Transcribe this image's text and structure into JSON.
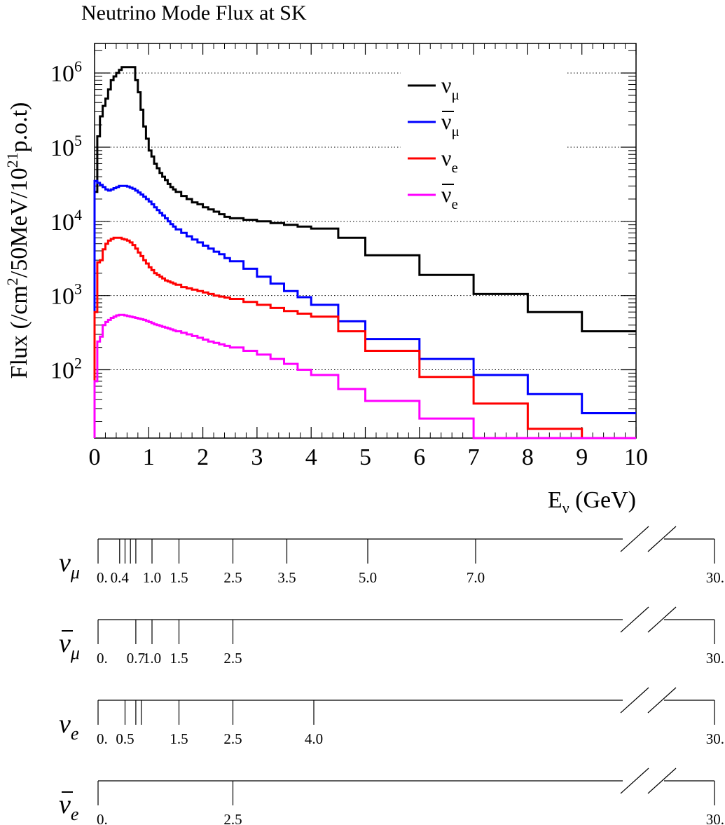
{
  "chart_data": [
    {
      "type": "line",
      "title": "Neutrino Mode Flux at SK",
      "xlabel": "Eν (GeV)",
      "ylabel": "Flux (/cm²/50MeV/10²¹p.o.t)",
      "log_y": true,
      "xlim": [
        0,
        10
      ],
      "ylim": [
        12,
        2500000
      ],
      "grid": "horizontal dotted",
      "legend_position": "top-right",
      "x_ticks": [
        "0",
        "1",
        "2",
        "3",
        "4",
        "5",
        "6",
        "7",
        "8",
        "9",
        "10"
      ],
      "y_ticks": [
        {
          "base": "10",
          "exp": "2",
          "value": 100
        },
        {
          "base": "10",
          "exp": "3",
          "value": 1000
        },
        {
          "base": "10",
          "exp": "4",
          "value": 10000
        },
        {
          "base": "10",
          "exp": "5",
          "value": 100000
        },
        {
          "base": "10",
          "exp": "6",
          "value": 1000000
        }
      ],
      "series": [
        {
          "name": "νμ",
          "legend_base": "ν",
          "legend_sub": "μ",
          "bar": false,
          "color": "#000000",
          "edges": [
            0,
            0.05,
            0.1,
            0.15,
            0.2,
            0.25,
            0.3,
            0.35,
            0.4,
            0.45,
            0.5,
            0.55,
            0.6,
            0.65,
            0.7,
            0.75,
            0.8,
            0.85,
            0.9,
            0.95,
            1.0,
            1.05,
            1.1,
            1.15,
            1.2,
            1.25,
            1.3,
            1.35,
            1.4,
            1.45,
            1.5,
            1.6,
            1.7,
            1.8,
            1.9,
            2.0,
            2.1,
            2.2,
            2.3,
            2.4,
            2.5,
            2.75,
            3.0,
            3.25,
            3.5,
            3.75,
            4.0,
            4.5,
            5.0,
            6.0,
            7.0,
            8.0,
            9.0,
            10.0
          ],
          "values": [
            25000,
            140000,
            260000,
            360000,
            450000,
            600000,
            800000,
            900000,
            1000000,
            1100000,
            1200000,
            1200000,
            1200000,
            1200000,
            1200000,
            800000,
            550000,
            320000,
            190000,
            130000,
            90000,
            75000,
            60000,
            52000,
            45000,
            40000,
            36000,
            32000,
            29000,
            27000,
            25000,
            22000,
            20000,
            18000,
            17000,
            15500,
            14500,
            13500,
            12500,
            11500,
            11000,
            10500,
            10000,
            9500,
            9000,
            8500,
            8000,
            6000,
            3500,
            1900,
            1050,
            600,
            330
          ]
        },
        {
          "name": "ν̄μ",
          "legend_base": "ν",
          "legend_sub": "μ",
          "bar": true,
          "color": "#0000ff",
          "edges": [
            0,
            0.05,
            0.1,
            0.15,
            0.2,
            0.25,
            0.3,
            0.35,
            0.4,
            0.45,
            0.5,
            0.55,
            0.6,
            0.65,
            0.7,
            0.75,
            0.8,
            0.85,
            0.9,
            0.95,
            1.0,
            1.05,
            1.1,
            1.15,
            1.2,
            1.25,
            1.3,
            1.35,
            1.4,
            1.45,
            1.5,
            1.6,
            1.7,
            1.8,
            1.9,
            2.0,
            2.1,
            2.2,
            2.3,
            2.4,
            2.5,
            2.75,
            3.0,
            3.25,
            3.5,
            3.75,
            4.0,
            4.5,
            5.0,
            6.0,
            7.0,
            8.0,
            9.0,
            10.0
          ],
          "values": [
            35000,
            33000,
            31000,
            29000,
            27000,
            26000,
            27000,
            28000,
            29000,
            30000,
            30000,
            30000,
            29500,
            28500,
            27500,
            26000,
            24500,
            23000,
            21500,
            20000,
            18500,
            17000,
            15500,
            14200,
            13000,
            12000,
            11000,
            10000,
            9200,
            8500,
            7800,
            7000,
            6300,
            5700,
            5200,
            4700,
            4300,
            3900,
            3600,
            3200,
            2900,
            2300,
            1800,
            1450,
            1150,
            950,
            750,
            450,
            260,
            140,
            85,
            47,
            26
          ]
        },
        {
          "name": "νe",
          "legend_base": "ν",
          "legend_sub": "e",
          "bar": false,
          "color": "#ff0000",
          "edges": [
            0,
            0.05,
            0.1,
            0.15,
            0.2,
            0.25,
            0.3,
            0.35,
            0.4,
            0.45,
            0.5,
            0.55,
            0.6,
            0.65,
            0.7,
            0.75,
            0.8,
            0.85,
            0.9,
            0.95,
            1.0,
            1.05,
            1.1,
            1.15,
            1.2,
            1.25,
            1.3,
            1.35,
            1.4,
            1.45,
            1.5,
            1.6,
            1.7,
            1.8,
            1.9,
            2.0,
            2.1,
            2.2,
            2.3,
            2.4,
            2.5,
            2.75,
            3.0,
            3.25,
            3.5,
            3.75,
            4.0,
            4.5,
            5.0,
            6.0,
            7.0,
            8.0,
            9.0,
            10.0
          ],
          "values": [
            600,
            2800,
            3000,
            4200,
            5000,
            5500,
            5800,
            6000,
            6000,
            6000,
            5800,
            5700,
            5500,
            5200,
            4800,
            4300,
            3800,
            3400,
            3000,
            2700,
            2400,
            2200,
            2000,
            1900,
            1800,
            1700,
            1600,
            1550,
            1500,
            1450,
            1400,
            1300,
            1250,
            1200,
            1150,
            1100,
            1050,
            1000,
            970,
            940,
            900,
            820,
            750,
            680,
            620,
            570,
            520,
            330,
            180,
            80,
            35,
            16,
            12
          ]
        },
        {
          "name": "ν̄e",
          "legend_base": "ν",
          "legend_sub": "e",
          "bar": true,
          "color": "#ff00ff",
          "edges": [
            0,
            0.05,
            0.1,
            0.15,
            0.2,
            0.25,
            0.3,
            0.35,
            0.4,
            0.45,
            0.5,
            0.55,
            0.6,
            0.65,
            0.7,
            0.75,
            0.8,
            0.85,
            0.9,
            0.95,
            1.0,
            1.05,
            1.1,
            1.15,
            1.2,
            1.25,
            1.3,
            1.35,
            1.4,
            1.45,
            1.5,
            1.6,
            1.7,
            1.8,
            1.9,
            2.0,
            2.1,
            2.2,
            2.3,
            2.4,
            2.5,
            2.75,
            3.0,
            3.25,
            3.5,
            3.75,
            4.0,
            4.5,
            5.0,
            6.0,
            7.0,
            8.0,
            9.0,
            10.0
          ],
          "values": [
            70,
            240,
            280,
            400,
            440,
            470,
            500,
            520,
            540,
            550,
            550,
            540,
            530,
            520,
            510,
            500,
            490,
            480,
            470,
            455,
            440,
            425,
            410,
            400,
            390,
            380,
            370,
            360,
            350,
            340,
            330,
            315,
            300,
            285,
            270,
            255,
            240,
            230,
            220,
            210,
            200,
            180,
            160,
            140,
            120,
            100,
            85,
            55,
            38,
            22,
            12,
            12,
            12
          ]
        }
      ]
    },
    {
      "type": "table",
      "title": "",
      "rows": [
        {
          "label_base": "ν",
          "label_sub": "μ",
          "bar": false,
          "bins": [
            0,
            0.4,
            0.5,
            0.6,
            0.7,
            1.0,
            1.5,
            2.5,
            3.5,
            5.0,
            7.0,
            30
          ],
          "tick_labels": [
            {
              "bin": 0,
              "text": "0."
            },
            {
              "bin": 0.4,
              "text": "0.4"
            },
            {
              "bin": 1.0,
              "text": "1.0"
            },
            {
              "bin": 1.5,
              "text": "1.5"
            },
            {
              "bin": 2.5,
              "text": "2.5"
            },
            {
              "bin": 3.5,
              "text": "3.5"
            },
            {
              "bin": 5.0,
              "text": "5.0"
            },
            {
              "bin": 7.0,
              "text": "7.0"
            },
            {
              "bin": 30,
              "text": "30."
            }
          ]
        },
        {
          "label_base": "ν",
          "label_sub": "μ",
          "bar": true,
          "bins": [
            0,
            0.7,
            1.0,
            1.5,
            2.5,
            30
          ],
          "tick_labels": [
            {
              "bin": 0,
              "text": "0."
            },
            {
              "bin": 0.7,
              "text": "0.7"
            },
            {
              "bin": 1.0,
              "text": "1.0"
            },
            {
              "bin": 1.5,
              "text": "1.5"
            },
            {
              "bin": 2.5,
              "text": "2.5"
            },
            {
              "bin": 30,
              "text": "30."
            }
          ]
        },
        {
          "label_base": "ν",
          "label_sub": "e",
          "bar": false,
          "bins": [
            0,
            0.5,
            0.7,
            0.8,
            1.5,
            2.5,
            4.0,
            30
          ],
          "tick_labels": [
            {
              "bin": 0,
              "text": "0."
            },
            {
              "bin": 0.5,
              "text": "0.5"
            },
            {
              "bin": 1.5,
              "text": "1.5"
            },
            {
              "bin": 2.5,
              "text": "2.5"
            },
            {
              "bin": 4.0,
              "text": "4.0"
            },
            {
              "bin": 30,
              "text": "30."
            }
          ]
        },
        {
          "label_base": "ν",
          "label_sub": "e",
          "bar": true,
          "bins": [
            0,
            2.5,
            30
          ],
          "tick_labels": [
            {
              "bin": 0,
              "text": "0."
            },
            {
              "bin": 2.5,
              "text": "2.5"
            },
            {
              "bin": 30,
              "text": "30."
            }
          ]
        }
      ]
    }
  ]
}
